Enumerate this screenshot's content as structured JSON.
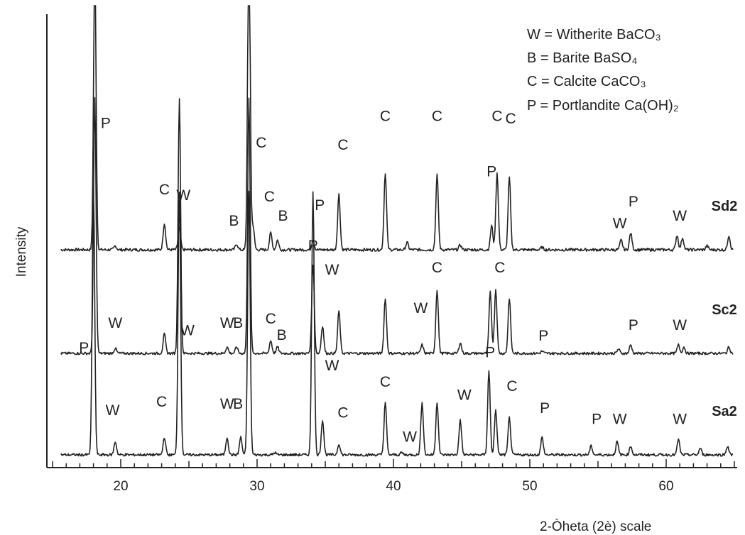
{
  "chart_data": {
    "type": "line",
    "xlabel": "2-Òheta (2è) scale",
    "ylabel": "Intensity",
    "xlim": [
      15,
      65
    ],
    "x_ticks": [
      20,
      30,
      40,
      50,
      60
    ],
    "grid": false,
    "legend": {
      "placement": "top-right",
      "entries": [
        {
          "key": "W",
          "text": "W = Witherite BaCO₃"
        },
        {
          "key": "B",
          "text": "B = Barite BaSO₄"
        },
        {
          "key": "C",
          "text": "C = Calcite CaCO₃"
        },
        {
          "key": "P",
          "text": "P = Portlandite Ca(OH)₂"
        }
      ]
    },
    "series": [
      {
        "name": "Sd2",
        "baseline": 0.0,
        "peaks": [
          [
            18.1,
            6.0
          ],
          [
            19.6,
            0.08
          ],
          [
            23.2,
            0.55
          ],
          [
            24.3,
            0.45
          ],
          [
            28.5,
            0.12
          ],
          [
            29.4,
            7.0
          ],
          [
            29.7,
            0.5
          ],
          [
            31.0,
            0.35
          ],
          [
            31.5,
            0.2
          ],
          [
            34.1,
            0.2
          ],
          [
            36.0,
            1.15
          ],
          [
            39.4,
            1.6
          ],
          [
            41.0,
            0.15
          ],
          [
            43.2,
            1.55
          ],
          [
            44.9,
            0.1
          ],
          [
            47.2,
            0.5
          ],
          [
            47.6,
            1.6
          ],
          [
            48.5,
            1.5
          ],
          [
            50.9,
            0.05
          ],
          [
            56.7,
            0.2
          ],
          [
            57.4,
            0.35
          ],
          [
            60.8,
            0.3
          ],
          [
            61.2,
            0.25
          ],
          [
            63.0,
            0.08
          ],
          [
            64.6,
            0.3
          ]
        ],
        "annotations": [
          {
            "label": "P",
            "x": 18.9,
            "y": 2.52
          },
          {
            "label": "C",
            "x": 23.2,
            "y": 1.15
          },
          {
            "label": "W",
            "x": 24.6,
            "y": 1.03
          },
          {
            "label": "B",
            "x": 28.3,
            "y": 0.5
          },
          {
            "label": "C",
            "x": 30.3,
            "y": 2.12
          },
          {
            "label": "C",
            "x": 30.9,
            "y": 1.0
          },
          {
            "label": "B",
            "x": 31.9,
            "y": 0.6
          },
          {
            "label": "P",
            "x": 34.6,
            "y": 0.82
          },
          {
            "label": "C",
            "x": 36.3,
            "y": 2.07
          },
          {
            "label": "C",
            "x": 39.4,
            "y": 2.67
          },
          {
            "label": "C",
            "x": 43.2,
            "y": 2.67
          },
          {
            "label": "P",
            "x": 47.2,
            "y": 1.52
          },
          {
            "label": "C",
            "x": 47.6,
            "y": 2.67
          },
          {
            "label": "C",
            "x": 48.6,
            "y": 2.62
          },
          {
            "label": "W",
            "x": 56.6,
            "y": 0.45
          },
          {
            "label": "P",
            "x": 57.6,
            "y": 0.9
          },
          {
            "label": "W",
            "x": 61.0,
            "y": 0.6
          }
        ]
      },
      {
        "name": "Sc2",
        "baseline": 0.0,
        "peaks": [
          [
            18.1,
            6.0
          ],
          [
            19.6,
            0.12
          ],
          [
            23.2,
            0.45
          ],
          [
            24.3,
            6.0
          ],
          [
            27.8,
            0.15
          ],
          [
            28.5,
            0.15
          ],
          [
            29.4,
            6.0
          ],
          [
            31.0,
            0.3
          ],
          [
            31.5,
            0.15
          ],
          [
            34.1,
            2.1
          ],
          [
            34.8,
            0.65
          ],
          [
            36.0,
            1.0
          ],
          [
            39.4,
            1.3
          ],
          [
            42.1,
            0.2
          ],
          [
            43.2,
            1.5
          ],
          [
            44.9,
            0.25
          ],
          [
            47.1,
            1.45
          ],
          [
            47.5,
            1.5
          ],
          [
            48.5,
            1.3
          ],
          [
            50.9,
            0.05
          ],
          [
            56.5,
            0.1
          ],
          [
            57.4,
            0.2
          ],
          [
            60.9,
            0.2
          ],
          [
            61.3,
            0.15
          ],
          [
            64.6,
            0.15
          ]
        ],
        "annotations": [
          {
            "label": "W",
            "x": 19.6,
            "y": 0.6
          },
          {
            "label": "W",
            "x": 27.8,
            "y": 0.6
          },
          {
            "label": "B",
            "x": 28.6,
            "y": 0.6
          },
          {
            "label": "C",
            "x": 31.0,
            "y": 0.7
          },
          {
            "label": "B",
            "x": 31.8,
            "y": 0.32
          },
          {
            "label": "P",
            "x": 34.1,
            "y": 2.42
          },
          {
            "label": "W",
            "x": 35.5,
            "y": 1.85
          },
          {
            "label": "W",
            "x": 42.0,
            "y": 0.95
          },
          {
            "label": "C",
            "x": 43.2,
            "y": 1.9
          },
          {
            "label": "C",
            "x": 47.8,
            "y": 1.9
          },
          {
            "label": "P",
            "x": 51.0,
            "y": 0.3
          },
          {
            "label": "P",
            "x": 57.6,
            "y": 0.55
          },
          {
            "label": "W",
            "x": 61.0,
            "y": 0.55
          }
        ]
      },
      {
        "name": "Sa2",
        "baseline": 0.0,
        "peaks": [
          [
            18.0,
            6.0
          ],
          [
            19.6,
            0.3
          ],
          [
            23.2,
            0.4
          ],
          [
            24.3,
            6.0
          ],
          [
            27.8,
            0.4
          ],
          [
            28.8,
            0.4
          ],
          [
            29.4,
            6.0
          ],
          [
            31.3,
            0.05
          ],
          [
            34.1,
            6.0
          ],
          [
            34.8,
            0.8
          ],
          [
            36.0,
            0.25
          ],
          [
            39.4,
            1.2
          ],
          [
            40.6,
            0.05
          ],
          [
            42.1,
            1.2
          ],
          [
            43.2,
            1.2
          ],
          [
            44.9,
            0.8
          ],
          [
            47.0,
            1.9
          ],
          [
            47.5,
            1.0
          ],
          [
            48.5,
            0.85
          ],
          [
            50.9,
            0.4
          ],
          [
            54.5,
            0.2
          ],
          [
            56.4,
            0.3
          ],
          [
            57.4,
            0.2
          ],
          [
            60.9,
            0.35
          ],
          [
            62.5,
            0.15
          ],
          [
            64.5,
            0.2
          ]
        ],
        "annotations": [
          {
            "label": "P",
            "x": 17.3,
            "y": 2.32
          },
          {
            "label": "W",
            "x": 19.4,
            "y": 0.9
          },
          {
            "label": "C",
            "x": 23.0,
            "y": 1.1
          },
          {
            "label": "W",
            "x": 24.9,
            "y": 2.72
          },
          {
            "label": "W",
            "x": 27.8,
            "y": 1.05
          },
          {
            "label": "B",
            "x": 28.6,
            "y": 1.05
          },
          {
            "label": "W",
            "x": 35.5,
            "y": 1.92
          },
          {
            "label": "C",
            "x": 36.3,
            "y": 0.85
          },
          {
            "label": "C",
            "x": 39.4,
            "y": 1.55
          },
          {
            "label": "W",
            "x": 41.2,
            "y": 0.3
          },
          {
            "label": "W",
            "x": 45.2,
            "y": 1.25
          },
          {
            "label": "P",
            "x": 47.1,
            "y": 2.22
          },
          {
            "label": "C",
            "x": 48.7,
            "y": 1.45
          },
          {
            "label": "P",
            "x": 51.1,
            "y": 0.95
          },
          {
            "label": "P",
            "x": 54.9,
            "y": 0.7
          },
          {
            "label": "W",
            "x": 56.6,
            "y": 0.7
          },
          {
            "label": "W",
            "x": 61.0,
            "y": 0.7
          }
        ]
      }
    ]
  }
}
